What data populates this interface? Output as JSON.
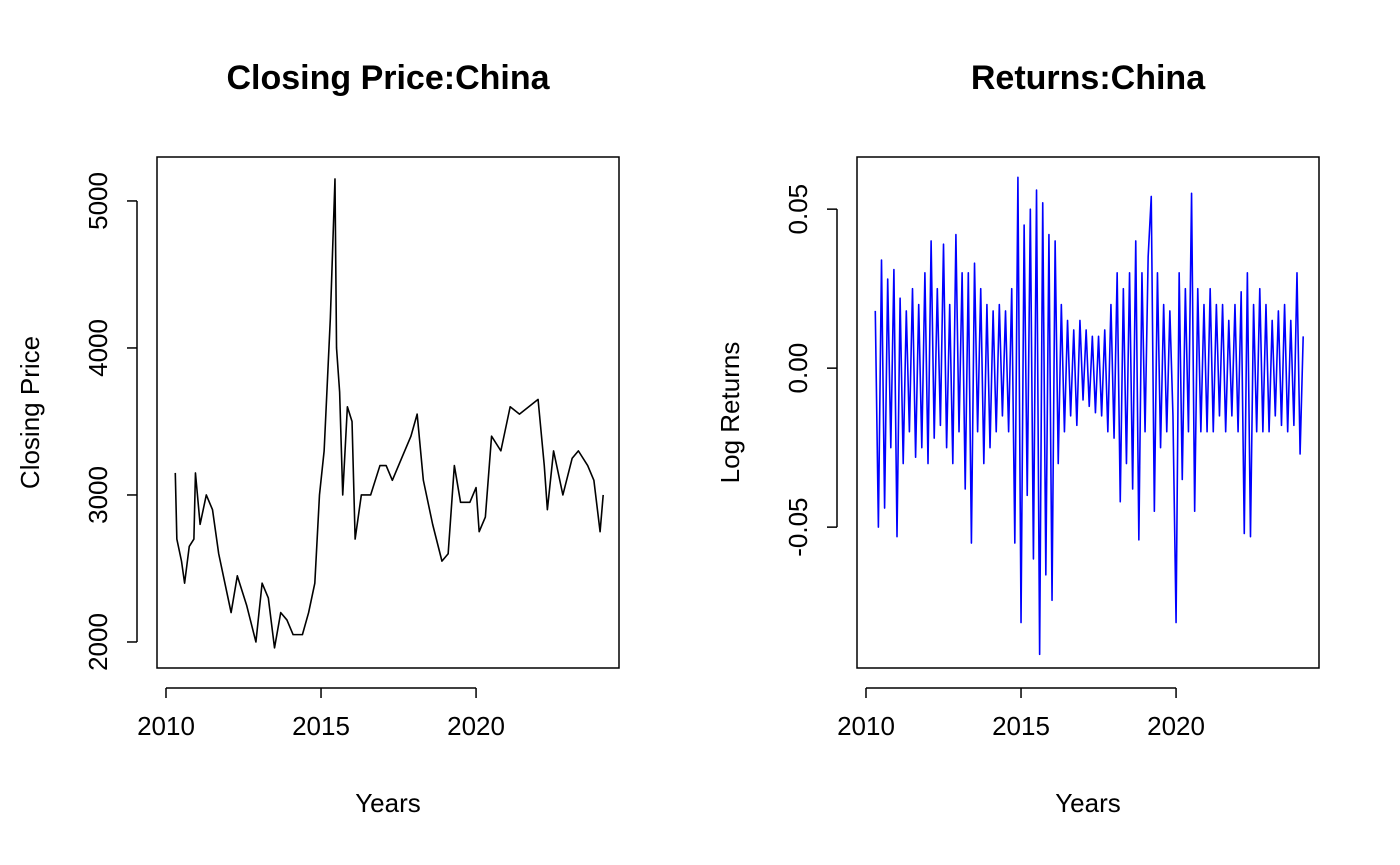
{
  "chart_data": [
    {
      "type": "line",
      "title": "Closing Price:China",
      "x_label": "Years",
      "y_label": "Closing Price",
      "xlim": [
        2009.71,
        2024.61
      ],
      "xticks": [
        2010,
        2015,
        2020
      ],
      "ylim": [
        1823,
        5299
      ],
      "yticks": [
        2000,
        3000,
        4000,
        5000
      ],
      "series": [
        {
          "color": "black",
          "x": [
            2010.3,
            2010.35,
            2010.5,
            2010.6,
            2010.75,
            2010.9,
            2010.95,
            2011.1,
            2011.3,
            2011.5,
            2011.7,
            2011.9,
            2012.1,
            2012.3,
            2012.6,
            2012.9,
            2013.1,
            2013.3,
            2013.5,
            2013.7,
            2013.9,
            2014.1,
            2014.4,
            2014.6,
            2014.8,
            2014.95,
            2015.1,
            2015.3,
            2015.45,
            2015.5,
            2015.6,
            2015.7,
            2015.85,
            2016.0,
            2016.1,
            2016.3,
            2016.6,
            2016.9,
            2017.1,
            2017.3,
            2017.6,
            2017.9,
            2018.1,
            2018.3,
            2018.6,
            2018.9,
            2019.1,
            2019.3,
            2019.5,
            2019.8,
            2020.0,
            2020.1,
            2020.3,
            2020.5,
            2020.8,
            2021.1,
            2021.4,
            2021.7,
            2022.0,
            2022.2,
            2022.3,
            2022.5,
            2022.8,
            2023.1,
            2023.3,
            2023.6,
            2023.8,
            2024.0,
            2024.1
          ],
          "values": [
            3150,
            2700,
            2550,
            2400,
            2650,
            2700,
            3150,
            2800,
            3000,
            2900,
            2600,
            2400,
            2200,
            2450,
            2250,
            2000,
            2400,
            2300,
            1960,
            2200,
            2150,
            2050,
            2050,
            2200,
            2400,
            3000,
            3300,
            4200,
            5150,
            4000,
            3700,
            3000,
            3600,
            3500,
            2700,
            3000,
            3000,
            3200,
            3200,
            3100,
            3250,
            3400,
            3550,
            3100,
            2800,
            2550,
            2600,
            3200,
            2950,
            2950,
            3050,
            2750,
            2850,
            3400,
            3300,
            3600,
            3550,
            3600,
            3650,
            3200,
            2900,
            3300,
            3000,
            3250,
            3300,
            3200,
            3100,
            2750,
            3000
          ]
        }
      ]
    },
    {
      "type": "line",
      "title": "Returns:China",
      "x_label": "Years",
      "y_label": "Log Returns",
      "xlim": [
        2009.71,
        2024.61
      ],
      "xticks": [
        2010,
        2015,
        2020
      ],
      "ylim": [
        -0.0943,
        0.0664
      ],
      "yticks": [
        -0.05,
        {
          "value": 0,
          "label": "0.00"
        },
        0.05
      ],
      "series": [
        {
          "color": "blue",
          "x": [
            2010.3,
            2010.4,
            2010.5,
            2010.6,
            2010.7,
            2010.8,
            2010.9,
            2011.0,
            2011.1,
            2011.2,
            2011.3,
            2011.4,
            2011.5,
            2011.6,
            2011.7,
            2011.8,
            2011.9,
            2012.0,
            2012.1,
            2012.2,
            2012.3,
            2012.4,
            2012.5,
            2012.6,
            2012.7,
            2012.8,
            2012.9,
            2013.0,
            2013.1,
            2013.2,
            2013.3,
            2013.4,
            2013.5,
            2013.6,
            2013.7,
            2013.8,
            2013.9,
            2014.0,
            2014.1,
            2014.2,
            2014.3,
            2014.4,
            2014.5,
            2014.6,
            2014.7,
            2014.8,
            2014.9,
            2015.0,
            2015.1,
            2015.2,
            2015.3,
            2015.4,
            2015.5,
            2015.6,
            2015.7,
            2015.8,
            2015.9,
            2016.0,
            2016.1,
            2016.2,
            2016.3,
            2016.4,
            2016.5,
            2016.6,
            2016.7,
            2016.8,
            2016.9,
            2017.0,
            2017.1,
            2017.2,
            2017.3,
            2017.4,
            2017.5,
            2017.6,
            2017.7,
            2017.8,
            2017.9,
            2018.0,
            2018.1,
            2018.2,
            2018.3,
            2018.4,
            2018.5,
            2018.6,
            2018.7,
            2018.8,
            2018.9,
            2019.0,
            2019.1,
            2019.2,
            2019.3,
            2019.4,
            2019.5,
            2019.6,
            2019.7,
            2019.8,
            2019.9,
            2020.0,
            2020.1,
            2020.2,
            2020.3,
            2020.4,
            2020.5,
            2020.6,
            2020.7,
            2020.8,
            2020.9,
            2021.0,
            2021.1,
            2021.2,
            2021.3,
            2021.4,
            2021.5,
            2021.6,
            2021.7,
            2021.8,
            2021.9,
            2022.0,
            2022.1,
            2022.2,
            2022.3,
            2022.4,
            2022.5,
            2022.6,
            2022.7,
            2022.8,
            2022.9,
            2023.0,
            2023.1,
            2023.2,
            2023.3,
            2023.4,
            2023.5,
            2023.6,
            2023.7,
            2023.8,
            2023.9,
            2024.0,
            2024.1
          ],
          "values": [
            0.018,
            -0.05,
            0.034,
            -0.044,
            0.028,
            -0.025,
            0.031,
            -0.053,
            0.022,
            -0.03,
            0.018,
            -0.02,
            0.025,
            -0.028,
            0.02,
            -0.025,
            0.03,
            -0.03,
            0.04,
            -0.022,
            0.025,
            -0.018,
            0.039,
            -0.025,
            0.02,
            -0.03,
            0.042,
            -0.02,
            0.03,
            -0.038,
            0.03,
            -0.055,
            0.033,
            -0.02,
            0.025,
            -0.03,
            0.02,
            -0.025,
            0.018,
            -0.02,
            0.02,
            -0.015,
            0.018,
            -0.02,
            0.025,
            -0.055,
            0.06,
            -0.08,
            0.045,
            -0.04,
            0.05,
            -0.06,
            0.056,
            -0.09,
            0.052,
            -0.065,
            0.042,
            -0.073,
            0.04,
            -0.03,
            0.02,
            -0.02,
            0.015,
            -0.015,
            0.012,
            -0.018,
            0.015,
            -0.01,
            0.012,
            -0.012,
            0.01,
            -0.014,
            0.01,
            -0.015,
            0.012,
            -0.02,
            0.02,
            -0.022,
            0.03,
            -0.042,
            0.025,
            -0.03,
            0.03,
            -0.038,
            0.04,
            -0.054,
            0.03,
            -0.02,
            0.035,
            0.054,
            -0.045,
            0.03,
            -0.025,
            0.02,
            -0.02,
            0.018,
            -0.015,
            -0.08,
            0.03,
            -0.035,
            0.025,
            -0.02,
            0.055,
            -0.045,
            0.025,
            -0.02,
            0.02,
            -0.02,
            0.025,
            -0.02,
            0.02,
            -0.015,
            0.02,
            -0.02,
            0.015,
            -0.015,
            0.02,
            -0.02,
            0.024,
            -0.052,
            0.03,
            -0.053,
            0.02,
            -0.02,
            0.025,
            -0.02,
            0.02,
            -0.02,
            0.015,
            -0.015,
            0.018,
            -0.018,
            0.02,
            -0.02,
            0.015,
            -0.018,
            0.03,
            -0.027,
            0.01
          ]
        }
      ]
    }
  ]
}
